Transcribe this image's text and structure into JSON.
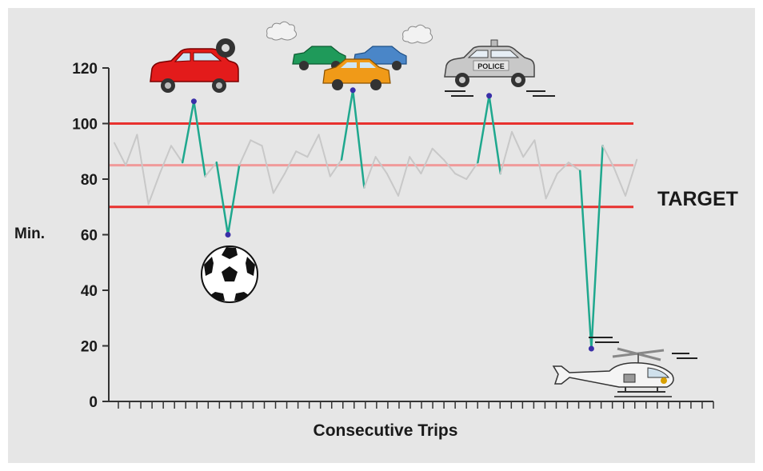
{
  "chart_data": {
    "type": "line",
    "title": "",
    "xlabel": "Consecutive Trips",
    "ylabel": "Min.",
    "ylim": [
      0,
      120
    ],
    "yticks": [
      0,
      20,
      40,
      60,
      80,
      100,
      120
    ],
    "grid": false,
    "reference_lines": [
      {
        "name": "upper limit",
        "value": 100,
        "color": "#e8312e"
      },
      {
        "name": "TARGET",
        "value": 85,
        "color": "#f09a9a"
      },
      {
        "name": "lower limit",
        "value": 70,
        "color": "#e8312e"
      }
    ],
    "target_label": "TARGET",
    "series": [
      {
        "values": [
          93,
          85,
          96,
          71,
          82,
          92,
          86,
          108,
          81,
          86,
          60,
          85,
          94,
          92,
          75,
          82,
          90,
          88,
          96,
          81,
          87,
          112,
          77,
          88,
          82,
          74,
          88,
          82,
          91,
          87,
          82,
          80,
          86,
          110,
          82,
          97,
          88,
          94,
          73,
          82,
          86,
          83,
          19,
          92,
          84,
          74,
          87
        ],
        "color": "#c8c8c8"
      }
    ],
    "outliers": [
      {
        "index": 7,
        "value": 108,
        "icon": "red-car-flat-tire-icon"
      },
      {
        "index": 10,
        "value": 60,
        "icon": "soccer-ball-icon"
      },
      {
        "index": 21,
        "value": 112,
        "icon": "traffic-jam-icon"
      },
      {
        "index": 33,
        "value": 110,
        "icon": "police-car-icon"
      },
      {
        "index": 42,
        "value": 19,
        "icon": "helicopter-icon"
      }
    ],
    "outlier_line_color": "#1fa88e",
    "outlier_point_color": "#3a2fa8",
    "police_text": "POLICE"
  }
}
